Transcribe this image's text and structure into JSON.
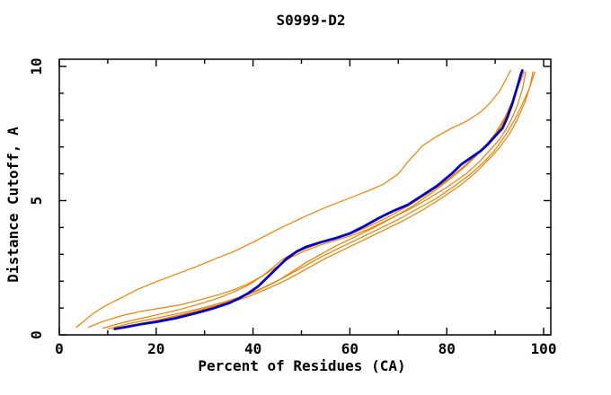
{
  "chart_data": {
    "type": "line",
    "title": "S0999-D2",
    "xlabel": "Percent of Residues (CA)",
    "ylabel": "Distance Cutoff, A",
    "xlim": [
      0,
      101.5
    ],
    "ylim": [
      0,
      10.27
    ],
    "grid": false,
    "legend_position": "none",
    "x_ticks_major": [
      0,
      20,
      40,
      60,
      80,
      100
    ],
    "x_tick_labels": [
      "0",
      "20",
      "40",
      "60",
      "80",
      "100"
    ],
    "x_ticks_minor": [
      10,
      30,
      50,
      70,
      90
    ],
    "y_ticks_major": [
      0,
      5,
      10
    ],
    "y_tick_labels": [
      "0",
      "5",
      "10"
    ],
    "y_ticks_minor": [
      1,
      2,
      3,
      4,
      6,
      7,
      8,
      9
    ],
    "colors": {
      "model_curves": "#f08000",
      "reference_curve": "#0000cd",
      "frame": "#000000",
      "background": "#ffffff"
    },
    "series": [
      {
        "name": "orange-curve-1",
        "color": "#f08000",
        "width": 1.2,
        "points": [
          [
            3.5,
            0.28
          ],
          [
            5,
            0.5
          ],
          [
            7,
            0.8
          ],
          [
            9,
            1.03
          ],
          [
            11,
            1.22
          ],
          [
            13,
            1.4
          ],
          [
            16,
            1.68
          ],
          [
            20,
            1.98
          ],
          [
            24,
            2.25
          ],
          [
            28,
            2.52
          ],
          [
            32,
            2.82
          ],
          [
            36,
            3.1
          ],
          [
            40,
            3.45
          ],
          [
            45,
            3.92
          ],
          [
            50,
            4.35
          ],
          [
            55,
            4.75
          ],
          [
            60,
            5.1
          ],
          [
            64,
            5.38
          ],
          [
            67,
            5.62
          ],
          [
            70,
            6.0
          ],
          [
            72,
            6.45
          ],
          [
            75,
            7.05
          ],
          [
            78,
            7.4
          ],
          [
            81,
            7.7
          ],
          [
            84,
            7.95
          ],
          [
            87,
            8.3
          ],
          [
            89,
            8.65
          ],
          [
            91,
            9.1
          ],
          [
            92.3,
            9.55
          ],
          [
            93.2,
            9.85
          ]
        ]
      },
      {
        "name": "orange-curve-2",
        "color": "#f08000",
        "width": 1.2,
        "points": [
          [
            6,
            0.28
          ],
          [
            9,
            0.5
          ],
          [
            13,
            0.72
          ],
          [
            17,
            0.88
          ],
          [
            21,
            1.0
          ],
          [
            25,
            1.12
          ],
          [
            29,
            1.3
          ],
          [
            33,
            1.5
          ],
          [
            36,
            1.68
          ],
          [
            39,
            1.9
          ],
          [
            42,
            2.2
          ],
          [
            45,
            2.55
          ],
          [
            48,
            2.9
          ],
          [
            51,
            3.15
          ],
          [
            54,
            3.35
          ],
          [
            57,
            3.52
          ],
          [
            60,
            3.68
          ],
          [
            64,
            3.95
          ],
          [
            68,
            4.3
          ],
          [
            72,
            4.65
          ],
          [
            76,
            5.05
          ],
          [
            80,
            5.5
          ],
          [
            84,
            6.0
          ],
          [
            87,
            6.5
          ],
          [
            89,
            6.9
          ],
          [
            91,
            7.3
          ],
          [
            93,
            7.9
          ],
          [
            94.5,
            8.5
          ],
          [
            95.7,
            9.2
          ],
          [
            96.3,
            9.8
          ]
        ]
      },
      {
        "name": "orange-curve-3",
        "color": "#f08000",
        "width": 1.2,
        "points": [
          [
            9,
            0.25
          ],
          [
            13,
            0.45
          ],
          [
            17,
            0.62
          ],
          [
            21,
            0.78
          ],
          [
            25,
            0.95
          ],
          [
            29,
            1.15
          ],
          [
            33,
            1.38
          ],
          [
            36,
            1.6
          ],
          [
            39,
            1.85
          ],
          [
            42,
            2.2
          ],
          [
            44,
            2.5
          ],
          [
            46,
            2.8
          ],
          [
            48,
            3.0
          ],
          [
            51,
            3.22
          ],
          [
            54,
            3.42
          ],
          [
            57,
            3.58
          ],
          [
            60,
            3.75
          ],
          [
            64,
            4.05
          ],
          [
            68,
            4.4
          ],
          [
            72,
            4.8
          ],
          [
            76,
            5.25
          ],
          [
            80,
            5.75
          ],
          [
            84,
            6.35
          ],
          [
            87,
            6.85
          ],
          [
            89,
            7.25
          ],
          [
            91,
            7.7
          ],
          [
            93,
            8.4
          ],
          [
            94.3,
            9.05
          ],
          [
            95.2,
            9.75
          ]
        ]
      },
      {
        "name": "orange-curve-4",
        "color": "#f08000",
        "width": 1.2,
        "points": [
          [
            10,
            0.22
          ],
          [
            14,
            0.4
          ],
          [
            18,
            0.55
          ],
          [
            22,
            0.7
          ],
          [
            26,
            0.85
          ],
          [
            30,
            1.02
          ],
          [
            34,
            1.22
          ],
          [
            38,
            1.45
          ],
          [
            42,
            1.75
          ],
          [
            46,
            2.1
          ],
          [
            50,
            2.5
          ],
          [
            54,
            2.9
          ],
          [
            58,
            3.25
          ],
          [
            62,
            3.6
          ],
          [
            66,
            3.95
          ],
          [
            70,
            4.3
          ],
          [
            74,
            4.7
          ],
          [
            78,
            5.1
          ],
          [
            82,
            5.6
          ],
          [
            85,
            6.0
          ],
          [
            88,
            6.5
          ],
          [
            90,
            6.9
          ],
          [
            92,
            7.4
          ],
          [
            94,
            8.0
          ],
          [
            95.5,
            8.55
          ],
          [
            97,
            9.15
          ],
          [
            98.2,
            9.8
          ]
        ]
      },
      {
        "name": "orange-curve-5",
        "color": "#f08000",
        "width": 1.2,
        "points": [
          [
            11,
            0.2
          ],
          [
            15,
            0.35
          ],
          [
            19,
            0.5
          ],
          [
            23,
            0.65
          ],
          [
            27,
            0.8
          ],
          [
            31,
            0.98
          ],
          [
            35,
            1.18
          ],
          [
            39,
            1.42
          ],
          [
            43,
            1.72
          ],
          [
            47,
            2.05
          ],
          [
            51,
            2.45
          ],
          [
            55,
            2.85
          ],
          [
            59,
            3.2
          ],
          [
            63,
            3.55
          ],
          [
            67,
            3.9
          ],
          [
            71,
            4.25
          ],
          [
            75,
            4.65
          ],
          [
            79,
            5.1
          ],
          [
            83,
            5.6
          ],
          [
            86,
            6.05
          ],
          [
            89,
            6.6
          ],
          [
            91,
            7.0
          ],
          [
            93,
            7.5
          ],
          [
            94.5,
            8.0
          ],
          [
            96,
            8.6
          ],
          [
            97.2,
            9.25
          ],
          [
            97.8,
            9.8
          ]
        ]
      },
      {
        "name": "orange-curve-6",
        "color": "#f08000",
        "width": 1.2,
        "points": [
          [
            13,
            0.25
          ],
          [
            17,
            0.42
          ],
          [
            21,
            0.58
          ],
          [
            25,
            0.75
          ],
          [
            29,
            0.92
          ],
          [
            33,
            1.12
          ],
          [
            37,
            1.35
          ],
          [
            41,
            1.65
          ],
          [
            45,
            2.0
          ],
          [
            48,
            2.35
          ],
          [
            51,
            2.7
          ],
          [
            54,
            3.0
          ],
          [
            57,
            3.3
          ],
          [
            61,
            3.65
          ],
          [
            65,
            4.0
          ],
          [
            69,
            4.38
          ],
          [
            73,
            4.8
          ],
          [
            77,
            5.3
          ],
          [
            81,
            5.85
          ],
          [
            84,
            6.3
          ],
          [
            86,
            6.65
          ],
          [
            88,
            7.05
          ],
          [
            90,
            7.5
          ],
          [
            92,
            8.1
          ],
          [
            93.5,
            8.7
          ],
          [
            95,
            9.35
          ],
          [
            96,
            9.8
          ]
        ]
      },
      {
        "name": "blue-curve",
        "color": "#0000cd",
        "width": 2.8,
        "points": [
          [
            11.5,
            0.22
          ],
          [
            14,
            0.3
          ],
          [
            17,
            0.4
          ],
          [
            20,
            0.48
          ],
          [
            24,
            0.62
          ],
          [
            28,
            0.8
          ],
          [
            32,
            1.0
          ],
          [
            35,
            1.18
          ],
          [
            37,
            1.35
          ],
          [
            39,
            1.55
          ],
          [
            41,
            1.8
          ],
          [
            43,
            2.15
          ],
          [
            45,
            2.5
          ],
          [
            47,
            2.85
          ],
          [
            49,
            3.1
          ],
          [
            51,
            3.28
          ],
          [
            54,
            3.45
          ],
          [
            57,
            3.6
          ],
          [
            60,
            3.78
          ],
          [
            63,
            4.05
          ],
          [
            66,
            4.35
          ],
          [
            69,
            4.62
          ],
          [
            72,
            4.85
          ],
          [
            75,
            5.2
          ],
          [
            78,
            5.55
          ],
          [
            81,
            6.0
          ],
          [
            83,
            6.35
          ],
          [
            85,
            6.6
          ],
          [
            87,
            6.85
          ],
          [
            88.5,
            7.1
          ],
          [
            90,
            7.4
          ],
          [
            91.5,
            7.7
          ],
          [
            92.5,
            8.1
          ],
          [
            93.5,
            8.6
          ],
          [
            94.5,
            9.2
          ],
          [
            95.3,
            9.7
          ],
          [
            95.6,
            9.85
          ]
        ]
      }
    ]
  }
}
